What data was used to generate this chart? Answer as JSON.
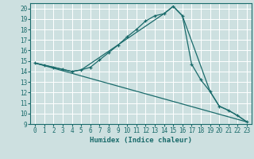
{
  "title": "",
  "xlabel": "Humidex (Indice chaleur)",
  "bg_color": "#cde0e0",
  "line_color": "#1a6b6b",
  "grid_color": "#ffffff",
  "xlim": [
    -0.5,
    23.5
  ],
  "ylim": [
    9,
    20.5
  ],
  "xticks": [
    0,
    1,
    2,
    3,
    4,
    5,
    6,
    7,
    8,
    9,
    10,
    11,
    12,
    13,
    14,
    15,
    16,
    17,
    18,
    19,
    20,
    21,
    22,
    23
  ],
  "yticks": [
    9,
    10,
    11,
    12,
    13,
    14,
    15,
    16,
    17,
    18,
    19,
    20
  ],
  "curve1_x": [
    0,
    1,
    2,
    3,
    4,
    5,
    6,
    7,
    8,
    9,
    10,
    11,
    12,
    13,
    14,
    15,
    16,
    17,
    18,
    19,
    20,
    21,
    22,
    23
  ],
  "curve1_y": [
    14.8,
    14.6,
    14.4,
    14.2,
    14.0,
    14.15,
    14.4,
    15.1,
    15.8,
    16.5,
    17.3,
    18.0,
    18.8,
    19.3,
    19.5,
    20.2,
    19.3,
    14.7,
    13.2,
    12.1,
    10.7,
    10.3,
    9.8,
    9.2
  ],
  "curve2_x": [
    0,
    4,
    5,
    14,
    15,
    16,
    19,
    20,
    21,
    22,
    23
  ],
  "curve2_y": [
    14.8,
    14.0,
    14.15,
    19.5,
    20.2,
    19.3,
    12.1,
    10.7,
    10.3,
    9.8,
    9.2
  ],
  "curve3_x": [
    0,
    23
  ],
  "curve3_y": [
    14.8,
    9.2
  ],
  "xlabel_fontsize": 6.5,
  "tick_fontsize": 5.5
}
